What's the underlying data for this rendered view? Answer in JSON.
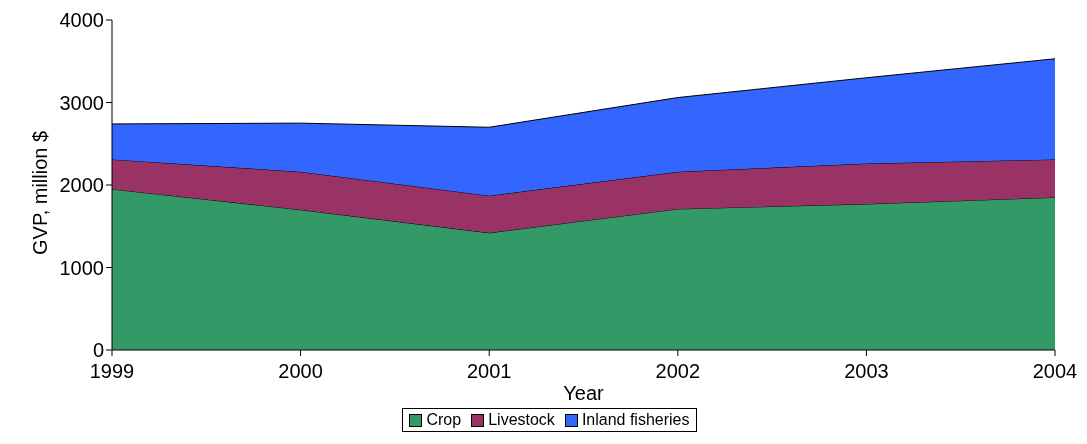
{
  "chart_data": {
    "type": "area",
    "stacked": true,
    "xlabel": "Year",
    "ylabel": "GVP, million $",
    "categories": [
      "1999",
      "2000",
      "2001",
      "2002",
      "2003",
      "2004"
    ],
    "series": [
      {
        "name": "Crop",
        "color": "#339966",
        "values": [
          1950,
          1700,
          1420,
          1710,
          1770,
          1850
        ]
      },
      {
        "name": "Livestock",
        "color": "#993366",
        "values": [
          360,
          460,
          450,
          450,
          490,
          460
        ]
      },
      {
        "name": "Inland fisheries",
        "color": "#3366ff",
        "values": [
          430,
          590,
          830,
          900,
          1040,
          1220
        ]
      }
    ],
    "ylim": [
      0,
      4000
    ],
    "yticks": [
      0,
      1000,
      2000,
      3000,
      4000
    ],
    "grid": false,
    "legend": "bottom"
  }
}
